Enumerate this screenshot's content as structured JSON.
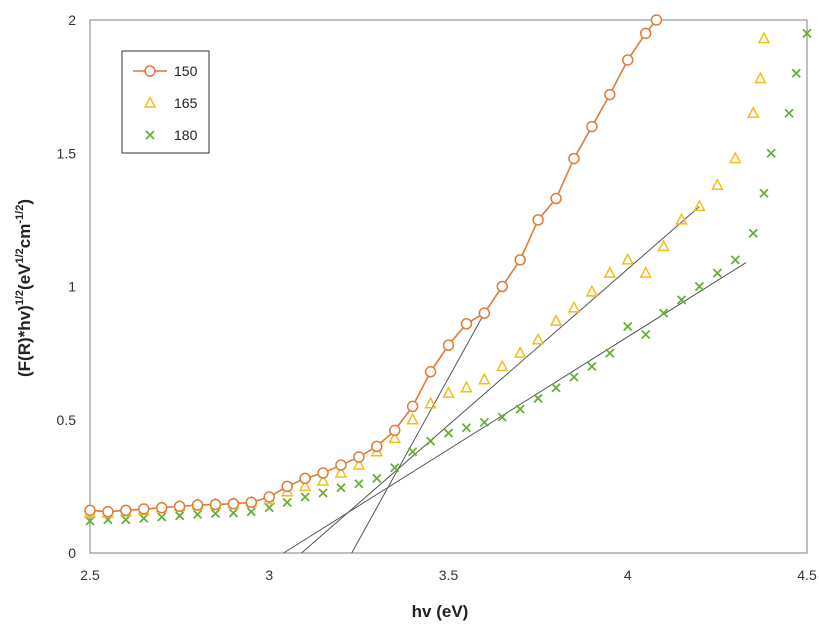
{
  "chart_data": {
    "type": "scatter",
    "xlabel": "hv (eV)",
    "ylabel": "(F(R)*hv)^1/2(eV^1/2cm^-1/2)",
    "ylabel_parts": {
      "main": "(F(R)*hv)",
      "exp1": "1/2",
      "mid": "(eV",
      "exp2": "1/2",
      "unit": "cm",
      "exp3": "-1/2",
      "close": ")"
    },
    "xlim": [
      2.5,
      4.5
    ],
    "ylim": [
      0,
      2
    ],
    "x_ticks": [
      "2.5",
      "3",
      "3.5",
      "4",
      "4.5"
    ],
    "y_ticks": [
      "0",
      "0.5",
      "1",
      "1.5",
      "2"
    ],
    "legend_position": "top-left",
    "grid": false,
    "series": [
      {
        "name": "150",
        "color": "#E07B39",
        "marker": "circle",
        "connected": true,
        "points": [
          [
            2.5,
            0.16
          ],
          [
            2.55,
            0.155
          ],
          [
            2.6,
            0.16
          ],
          [
            2.65,
            0.165
          ],
          [
            2.7,
            0.17
          ],
          [
            2.75,
            0.175
          ],
          [
            2.8,
            0.18
          ],
          [
            2.85,
            0.182
          ],
          [
            2.9,
            0.185
          ],
          [
            2.95,
            0.19
          ],
          [
            3.0,
            0.21
          ],
          [
            3.05,
            0.25
          ],
          [
            3.1,
            0.28
          ],
          [
            3.15,
            0.3
          ],
          [
            3.2,
            0.33
          ],
          [
            3.25,
            0.36
          ],
          [
            3.3,
            0.4
          ],
          [
            3.35,
            0.46
          ],
          [
            3.4,
            0.55
          ],
          [
            3.45,
            0.68
          ],
          [
            3.5,
            0.78
          ],
          [
            3.55,
            0.86
          ],
          [
            3.6,
            0.9
          ],
          [
            3.65,
            1.0
          ],
          [
            3.7,
            1.1
          ],
          [
            3.75,
            1.25
          ],
          [
            3.8,
            1.33
          ],
          [
            3.85,
            1.48
          ],
          [
            3.9,
            1.6
          ],
          [
            3.95,
            1.72
          ],
          [
            4.0,
            1.85
          ],
          [
            4.05,
            1.95
          ],
          [
            4.08,
            2.0
          ]
        ]
      },
      {
        "name": "165",
        "color": "#F2BE1A",
        "marker": "triangle",
        "connected": false,
        "points": [
          [
            2.5,
            0.15
          ],
          [
            2.55,
            0.15
          ],
          [
            2.6,
            0.155
          ],
          [
            2.65,
            0.16
          ],
          [
            2.7,
            0.17
          ],
          [
            2.75,
            0.175
          ],
          [
            2.8,
            0.18
          ],
          [
            2.85,
            0.182
          ],
          [
            2.9,
            0.185
          ],
          [
            2.95,
            0.19
          ],
          [
            3.0,
            0.2
          ],
          [
            3.05,
            0.23
          ],
          [
            3.1,
            0.25
          ],
          [
            3.15,
            0.27
          ],
          [
            3.2,
            0.3
          ],
          [
            3.25,
            0.33
          ],
          [
            3.3,
            0.38
          ],
          [
            3.35,
            0.43
          ],
          [
            3.4,
            0.5
          ],
          [
            3.45,
            0.56
          ],
          [
            3.5,
            0.6
          ],
          [
            3.55,
            0.62
          ],
          [
            3.6,
            0.65
          ],
          [
            3.65,
            0.7
          ],
          [
            3.7,
            0.75
          ],
          [
            3.75,
            0.8
          ],
          [
            3.8,
            0.87
          ],
          [
            3.85,
            0.92
          ],
          [
            3.9,
            0.98
          ],
          [
            3.95,
            1.05
          ],
          [
            4.0,
            1.1
          ],
          [
            4.05,
            1.05
          ],
          [
            4.1,
            1.15
          ],
          [
            4.15,
            1.25
          ],
          [
            4.2,
            1.3
          ],
          [
            4.25,
            1.38
          ],
          [
            4.3,
            1.48
          ],
          [
            4.35,
            1.65
          ],
          [
            4.37,
            1.78
          ],
          [
            4.38,
            1.93
          ]
        ]
      },
      {
        "name": "180",
        "color": "#6AAE3A",
        "marker": "x",
        "connected": false,
        "points": [
          [
            2.5,
            0.12
          ],
          [
            2.55,
            0.125
          ],
          [
            2.6,
            0.125
          ],
          [
            2.65,
            0.13
          ],
          [
            2.7,
            0.135
          ],
          [
            2.75,
            0.14
          ],
          [
            2.8,
            0.145
          ],
          [
            2.85,
            0.148
          ],
          [
            2.9,
            0.15
          ],
          [
            2.95,
            0.155
          ],
          [
            3.0,
            0.17
          ],
          [
            3.05,
            0.19
          ],
          [
            3.1,
            0.21
          ],
          [
            3.15,
            0.225
          ],
          [
            3.2,
            0.245
          ],
          [
            3.25,
            0.26
          ],
          [
            3.3,
            0.28
          ],
          [
            3.35,
            0.32
          ],
          [
            3.4,
            0.38
          ],
          [
            3.45,
            0.42
          ],
          [
            3.5,
            0.45
          ],
          [
            3.55,
            0.47
          ],
          [
            3.6,
            0.49
          ],
          [
            3.65,
            0.51
          ],
          [
            3.7,
            0.54
          ],
          [
            3.75,
            0.58
          ],
          [
            3.8,
            0.62
          ],
          [
            3.85,
            0.66
          ],
          [
            3.9,
            0.7
          ],
          [
            3.95,
            0.75
          ],
          [
            4.0,
            0.85
          ],
          [
            4.05,
            0.82
          ],
          [
            4.1,
            0.9
          ],
          [
            4.15,
            0.95
          ],
          [
            4.2,
            1.0
          ],
          [
            4.25,
            1.05
          ],
          [
            4.3,
            1.1
          ],
          [
            4.35,
            1.2
          ],
          [
            4.38,
            1.35
          ],
          [
            4.4,
            1.5
          ],
          [
            4.45,
            1.65
          ],
          [
            4.47,
            1.8
          ],
          [
            4.5,
            1.95
          ]
        ]
      }
    ],
    "tangent_lines": [
      {
        "x1": 3.23,
        "y1": 0.0,
        "x2": 3.6,
        "y2": 0.9
      },
      {
        "x1": 3.09,
        "y1": 0.0,
        "x2": 4.2,
        "y2": 1.3
      },
      {
        "x1": 3.04,
        "y1": 0.0,
        "x2": 4.33,
        "y2": 1.09
      }
    ]
  }
}
